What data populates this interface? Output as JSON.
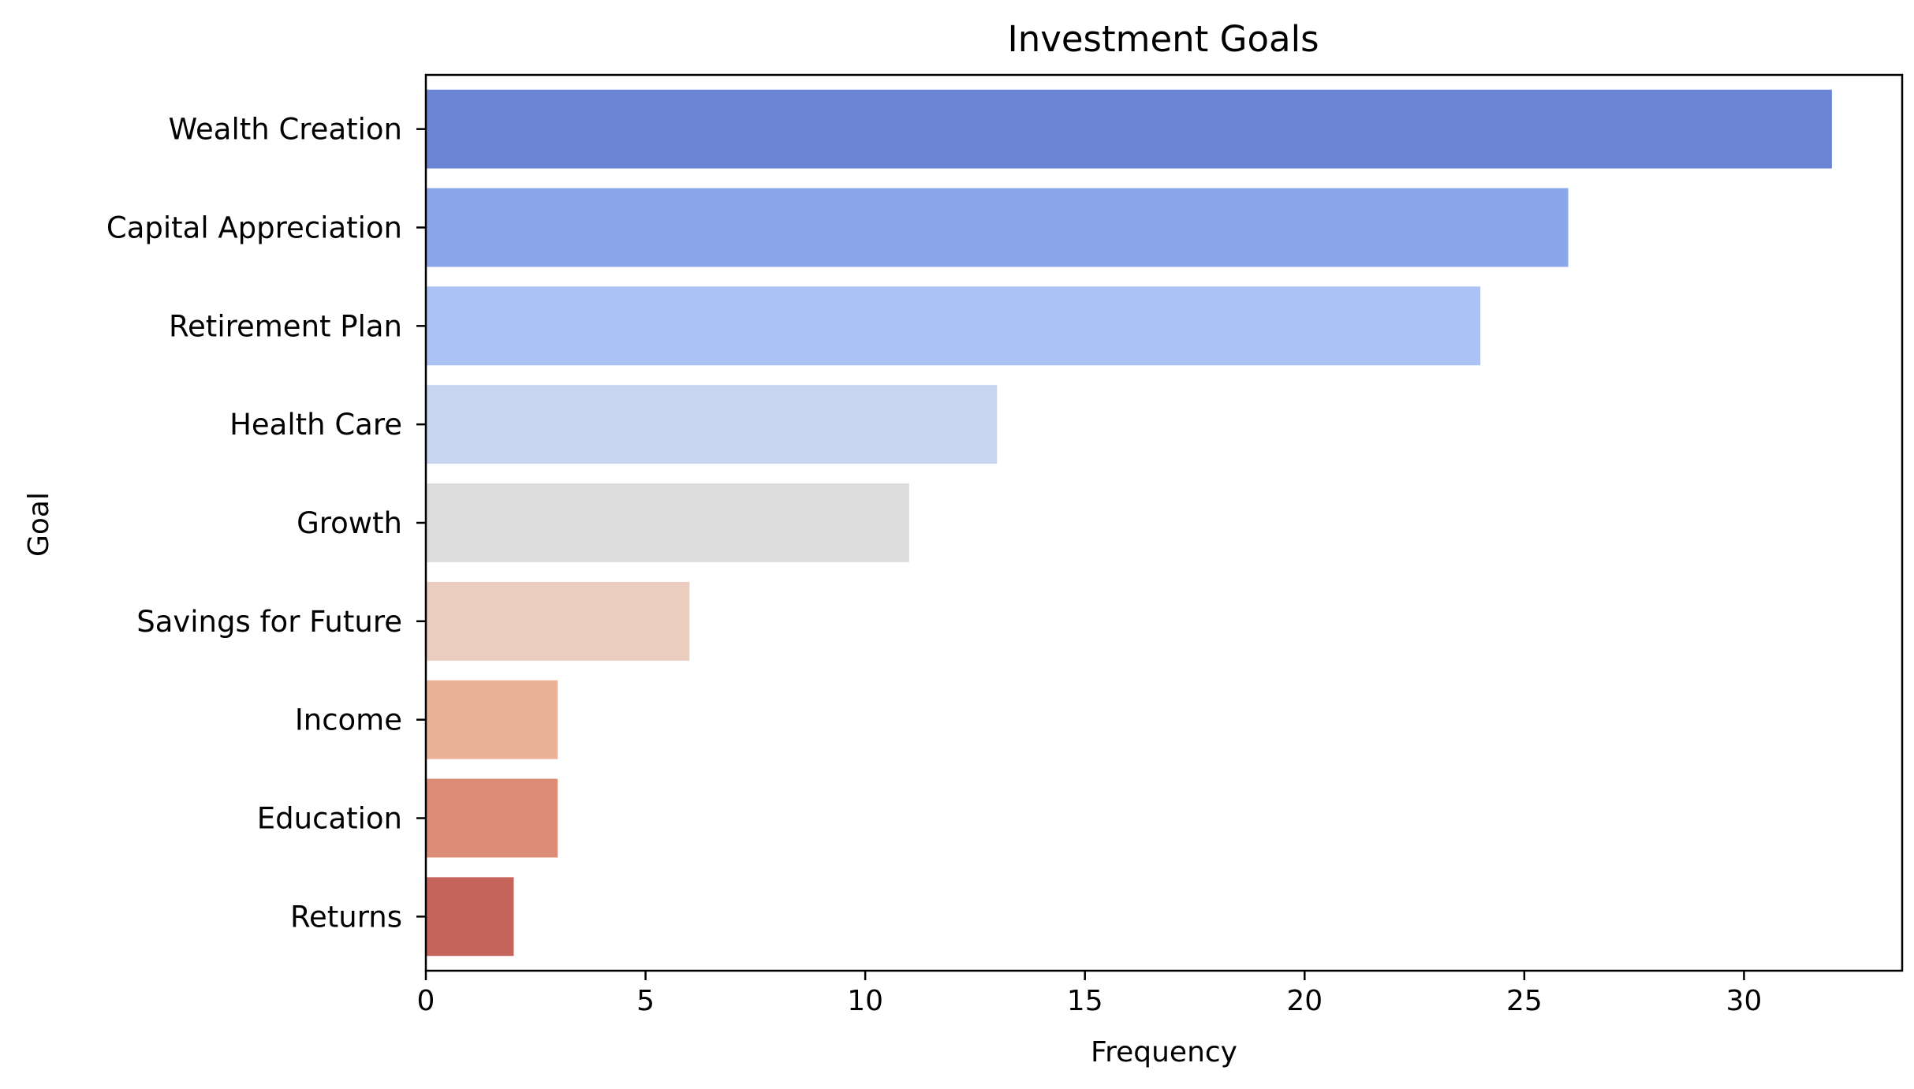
{
  "chart_data": {
    "type": "bar",
    "orientation": "horizontal",
    "title": "Investment Goals",
    "xlabel": "Frequency",
    "ylabel": "Goal",
    "categories": [
      "Wealth Creation",
      "Capital Appreciation",
      "Retirement Plan",
      "Health Care",
      "Growth",
      "Savings for Future",
      "Income",
      "Education",
      "Returns"
    ],
    "values": [
      32,
      26,
      24,
      13,
      11,
      6,
      3,
      3,
      2
    ],
    "colors": [
      "#6b84d3",
      "#8ca6ea",
      "#aac2f4",
      "#c8d5f0",
      "#dddddd",
      "#ebcdc0",
      "#ebb29a",
      "#dd8c76",
      "#c5645a"
    ],
    "xlim": [
      0,
      33.6
    ],
    "xticks": [
      0,
      5,
      10,
      15,
      20,
      25,
      30
    ],
    "grid": false,
    "legend": "none"
  }
}
